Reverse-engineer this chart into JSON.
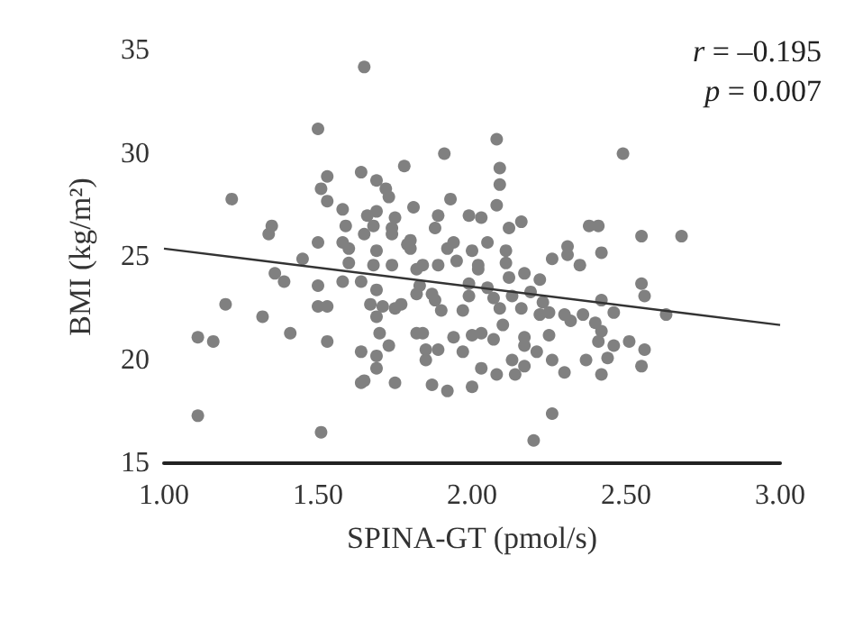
{
  "chart_data": {
    "type": "scatter",
    "xlabel": "SPINA-GT (pmol/s)",
    "ylabel": "BMI (kg/m²)",
    "annotations": [
      "r = –0.195",
      "p = 0.007"
    ],
    "xlim": [
      1.0,
      3.0
    ],
    "xticks": [
      {
        "value": 1,
        "label": "1.00"
      },
      {
        "value": 1.5,
        "label": "1.50"
      },
      {
        "value": 2,
        "label": "2.00"
      },
      {
        "value": 2.5,
        "label": "2.50"
      },
      {
        "value": 3,
        "label": "3.00"
      }
    ],
    "ylim": [
      15,
      35
    ],
    "yticks": [
      15,
      20,
      25,
      30,
      35
    ],
    "grid": false,
    "marker": "circle",
    "series": [
      {
        "color": "#808080",
        "x": [
          1.65,
          1.5,
          1.22,
          1.53,
          1.51,
          1.53,
          1.64,
          1.69,
          1.72,
          1.73,
          1.78,
          1.58,
          1.66,
          1.69,
          1.75,
          1.59,
          1.65,
          1.68,
          1.74,
          1.74,
          1.35,
          1.34,
          1.5,
          1.45,
          1.58,
          1.6,
          1.69,
          1.79,
          1.81,
          1.6,
          1.68,
          1.74,
          2.08,
          1.91,
          2.09,
          2.09,
          2.49,
          1.93,
          1.89,
          1.99,
          2.03,
          2.08,
          2.16,
          2.12,
          1.88,
          2.38,
          2.41,
          2.55,
          2.68,
          1.8,
          1.94,
          2.05,
          1.8,
          1.92,
          2.0,
          2.11,
          2.31,
          2.31,
          2.26,
          2.42,
          2.35,
          1.84,
          1.89,
          1.95,
          2.02,
          2.11,
          1.36,
          1.39,
          1.5,
          1.58,
          1.64,
          1.69,
          1.2,
          1.32,
          1.5,
          1.53,
          1.67,
          1.71,
          1.75,
          1.77,
          1.69,
          1.7,
          1.41,
          1.53,
          1.11,
          1.16,
          1.64,
          1.73,
          1.69,
          1.69,
          1.64,
          1.65,
          1.75,
          1.11,
          1.51,
          1.82,
          1.82,
          2.02,
          2.17,
          2.22,
          1.83,
          1.99,
          2.05,
          2.12,
          2.55,
          2.56,
          1.82,
          1.87,
          1.88,
          1.99,
          2.07,
          2.13,
          2.19,
          2.42,
          2.23,
          1.9,
          1.97,
          2.09,
          2.16,
          2.25,
          2.3,
          2.36,
          2.46,
          2.63,
          2.22,
          2.32,
          2.4,
          1.84,
          1.94,
          2.0,
          2.03,
          2.07,
          2.1,
          2.17,
          2.25,
          2.42,
          2.41,
          2.46,
          2.51,
          2.56,
          1.85,
          1.89,
          1.97,
          2.17,
          2.21,
          1.85,
          2.13,
          2.17,
          2.26,
          2.37,
          2.44,
          2.55,
          2.03,
          2.08,
          2.14,
          2.3,
          2.42,
          1.87,
          1.92,
          2.0,
          2.26,
          2.2
        ],
        "values": [
          34.2,
          31.2,
          27.8,
          28.9,
          28.3,
          27.7,
          29.1,
          28.7,
          28.3,
          27.9,
          29.4,
          27.3,
          27.0,
          27.2,
          26.9,
          26.5,
          26.1,
          26.5,
          26.4,
          26.1,
          26.5,
          26.1,
          25.7,
          24.9,
          25.7,
          25.4,
          25.3,
          25.6,
          27.4,
          24.7,
          24.6,
          24.6,
          30.7,
          30.0,
          29.3,
          28.5,
          30.0,
          27.8,
          27.0,
          27.0,
          26.9,
          27.5,
          26.7,
          26.4,
          26.4,
          26.5,
          26.5,
          26.0,
          26.0,
          25.8,
          25.7,
          25.7,
          25.4,
          25.4,
          25.3,
          25.3,
          25.5,
          25.1,
          24.9,
          25.2,
          24.6,
          24.6,
          24.6,
          24.8,
          24.6,
          24.7,
          24.2,
          23.8,
          23.6,
          23.8,
          23.8,
          23.4,
          22.7,
          22.1,
          22.6,
          22.6,
          22.7,
          22.6,
          22.5,
          22.7,
          22.1,
          21.3,
          21.3,
          20.9,
          21.1,
          20.9,
          20.4,
          20.7,
          20.2,
          19.6,
          18.9,
          19.0,
          18.9,
          17.3,
          16.5,
          21.3,
          24.4,
          24.4,
          24.2,
          23.9,
          23.6,
          23.7,
          23.5,
          24.0,
          23.7,
          23.1,
          23.2,
          23.2,
          22.9,
          23.1,
          23.0,
          23.1,
          23.3,
          22.9,
          22.8,
          22.4,
          22.4,
          22.5,
          22.5,
          22.3,
          22.2,
          22.2,
          22.3,
          22.2,
          22.2,
          21.9,
          21.8,
          21.3,
          21.1,
          21.2,
          21.3,
          21.0,
          21.7,
          21.1,
          21.2,
          21.4,
          20.9,
          20.7,
          20.9,
          20.5,
          20.5,
          20.5,
          20.4,
          20.7,
          20.4,
          20.0,
          20.0,
          19.7,
          20.0,
          20.0,
          20.1,
          19.7,
          19.6,
          19.3,
          19.3,
          19.4,
          19.3,
          18.8,
          18.5,
          18.7,
          17.4,
          16.1
        ]
      },
      {
        "type": "line",
        "color": "#333333",
        "marker": "none",
        "line_style": "solid",
        "x": [
          1.0,
          3.0
        ],
        "values": [
          25.4,
          21.7
        ]
      }
    ]
  }
}
